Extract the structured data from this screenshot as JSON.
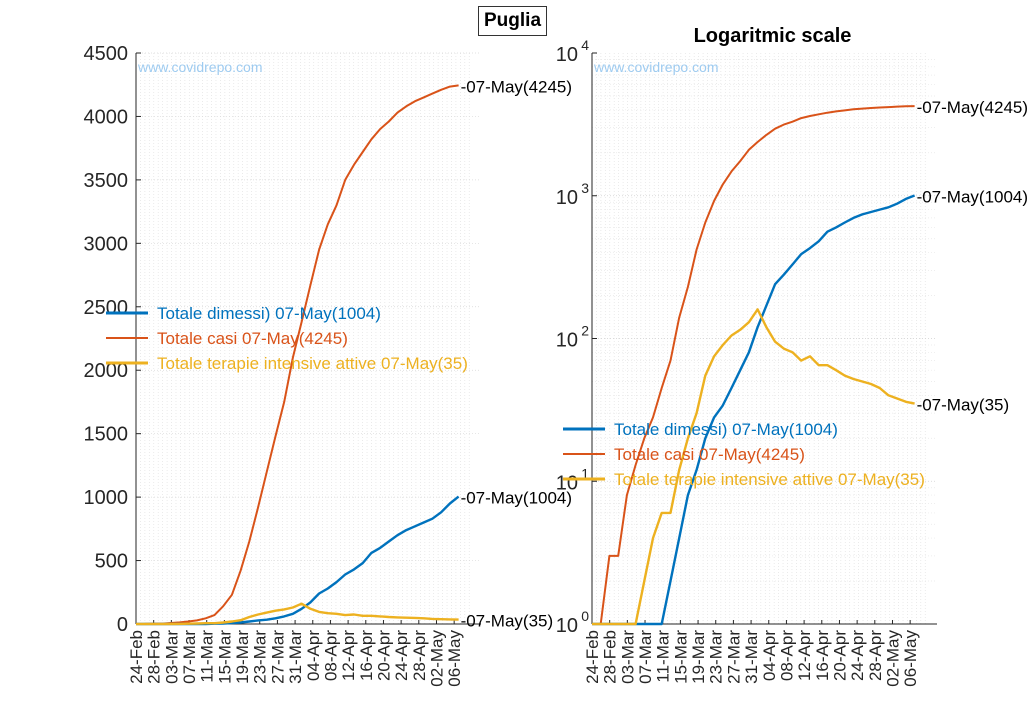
{
  "figure_title": "Puglia",
  "watermark": "www.covidrepo.com",
  "colors": {
    "dimessi": "#0072BD",
    "casi": "#D95319",
    "terapie": "#EDB120"
  },
  "chart_data": [
    {
      "type": "line",
      "title": "",
      "x_tick_labels": [
        "24-Feb",
        "28-Feb",
        "03-Mar",
        "07-Mar",
        "11-Mar",
        "15-Mar",
        "19-Mar",
        "23-Mar",
        "27-Mar",
        "31-Mar",
        "04-Apr",
        "08-Apr",
        "12-Apr",
        "16-Apr",
        "20-Apr",
        "24-Apr",
        "28-Apr",
        "02-May",
        "06-May"
      ],
      "y_scale": "linear",
      "ylim": [
        0,
        4500
      ],
      "y_ticks": [
        0,
        500,
        1000,
        1500,
        2000,
        2500,
        3000,
        3500,
        4000,
        4500
      ],
      "y_tick_labels": [
        "0",
        "500",
        "1000",
        "1500",
        "2000",
        "2500",
        "3000",
        "3500",
        "4000",
        "4500"
      ],
      "legend": [
        "Totale dimessi) 07-May(1004)",
        "Totale casi 07-May(4245)",
        "Totale terapie intensive attive 07-May(35)"
      ],
      "end_labels": [
        "-07-May(4245)",
        "-07-May(1004)",
        "-07-May(35)"
      ],
      "grid": true
    },
    {
      "type": "line",
      "title": "Logaritmic scale",
      "x_tick_labels": [
        "24-Feb",
        "28-Feb",
        "03-Mar",
        "07-Mar",
        "11-Mar",
        "15-Mar",
        "19-Mar",
        "23-Mar",
        "27-Mar",
        "31-Mar",
        "04-Apr",
        "08-Apr",
        "12-Apr",
        "16-Apr",
        "20-Apr",
        "24-Apr",
        "28-Apr",
        "02-May",
        "06-May"
      ],
      "y_scale": "log",
      "ylim": [
        1,
        10000
      ],
      "y_tick_labels": [
        {
          "base": "10",
          "exp": "0"
        },
        {
          "base": "10",
          "exp": "1"
        },
        {
          "base": "10",
          "exp": "2"
        },
        {
          "base": "10",
          "exp": "3"
        },
        {
          "base": "10",
          "exp": "4"
        }
      ],
      "legend": [
        "Totale dimessi) 07-May(1004)",
        "Totale casi 07-May(4245)",
        "Totale terapie intensive attive 07-May(35)"
      ],
      "end_labels": [
        "-07-May(4245)",
        "-07-May(1004)",
        "-07-May(35)"
      ],
      "grid": true
    }
  ],
  "series": {
    "x_dates": [
      "24-Feb",
      "26-Feb",
      "28-Feb",
      "01-Mar",
      "03-Mar",
      "05-Mar",
      "07-Mar",
      "09-Mar",
      "11-Mar",
      "13-Mar",
      "15-Mar",
      "17-Mar",
      "19-Mar",
      "21-Mar",
      "23-Mar",
      "25-Mar",
      "27-Mar",
      "29-Mar",
      "31-Mar",
      "02-Apr",
      "04-Apr",
      "06-Apr",
      "08-Apr",
      "10-Apr",
      "12-Apr",
      "14-Apr",
      "16-Apr",
      "18-Apr",
      "20-Apr",
      "22-Apr",
      "24-Apr",
      "26-Apr",
      "28-Apr",
      "30-Apr",
      "02-May",
      "04-May",
      "06-May",
      "07-May"
    ],
    "casi": [
      0,
      1,
      3,
      3,
      8,
      13,
      20,
      28,
      45,
      70,
      140,
      230,
      420,
      650,
      920,
      1200,
      1480,
      1750,
      2100,
      2380,
      2670,
      2950,
      3150,
      3300,
      3500,
      3620,
      3720,
      3820,
      3900,
      3960,
      4030,
      4080,
      4120,
      4150,
      4180,
      4210,
      4235,
      4245
    ],
    "dimessi": [
      0,
      0,
      0,
      0,
      0,
      0,
      0,
      0,
      0,
      2,
      4,
      8,
      12,
      20,
      28,
      34,
      45,
      60,
      80,
      120,
      170,
      240,
      280,
      330,
      390,
      430,
      480,
      560,
      600,
      650,
      700,
      740,
      770,
      800,
      830,
      880,
      950,
      1004
    ],
    "terapie": [
      0,
      0,
      0,
      0,
      0,
      1,
      2,
      4,
      6,
      6,
      12,
      20,
      30,
      55,
      75,
      90,
      105,
      115,
      130,
      160,
      120,
      95,
      85,
      80,
      70,
      75,
      65,
      65,
      60,
      55,
      52,
      50,
      48,
      45,
      40,
      38,
      36,
      35
    ]
  }
}
